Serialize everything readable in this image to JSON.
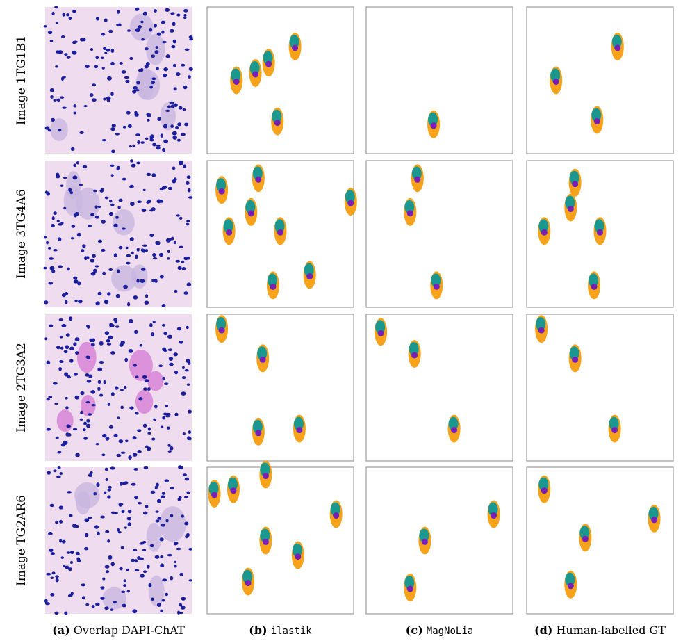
{
  "rows": [
    "Image 1TG1B1",
    "Image 3TG4A6",
    "Image 2TG3A2",
    "Image TG2AR6"
  ],
  "columns": [
    {
      "letter": "(a)",
      "text": "Overlap DAPI-ChAT"
    },
    {
      "letter": "(b)",
      "text": "ilastik"
    },
    {
      "letter": "(c)",
      "text": "MagNoLia"
    },
    {
      "letter": "(d)",
      "text": "Human-labelled GT"
    }
  ]
}
